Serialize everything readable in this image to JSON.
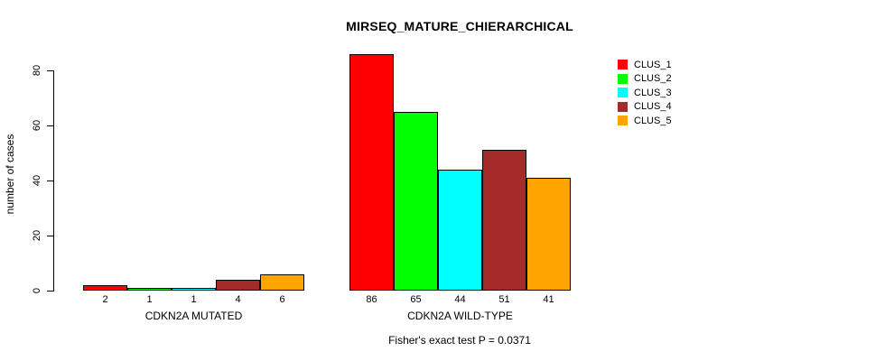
{
  "chart": {
    "title": "MIRSEQ_MATURE_CHIERARCHICAL",
    "ylabel": "number of cases",
    "subtitle": "Fisher's exact test P = 0.0371"
  },
  "chart_data": {
    "type": "bar",
    "title": "MIRSEQ_MATURE_CHIERARCHICAL",
    "xlabel": "",
    "ylabel": "number of cases",
    "annotation": "Fisher's exact test P = 0.0371",
    "ylim": [
      0,
      86
    ],
    "yticks": [
      0,
      20,
      40,
      60,
      80
    ],
    "grid": false,
    "legend_position": "top-right",
    "bar_value_labels_shown": true,
    "categories": [
      "CDKN2A MUTATED",
      "CDKN2A WILD-TYPE"
    ],
    "series": [
      {
        "name": "CLUS_1",
        "color": "#FF0000",
        "values": [
          2,
          86
        ]
      },
      {
        "name": "CLUS_2",
        "color": "#00FF00",
        "values": [
          1,
          65
        ]
      },
      {
        "name": "CLUS_3",
        "color": "#00FFFF",
        "values": [
          1,
          44
        ]
      },
      {
        "name": "CLUS_4",
        "color": "#A52A2A",
        "values": [
          4,
          51
        ]
      },
      {
        "name": "CLUS_5",
        "color": "#FFA500",
        "values": [
          6,
          41
        ]
      }
    ]
  }
}
